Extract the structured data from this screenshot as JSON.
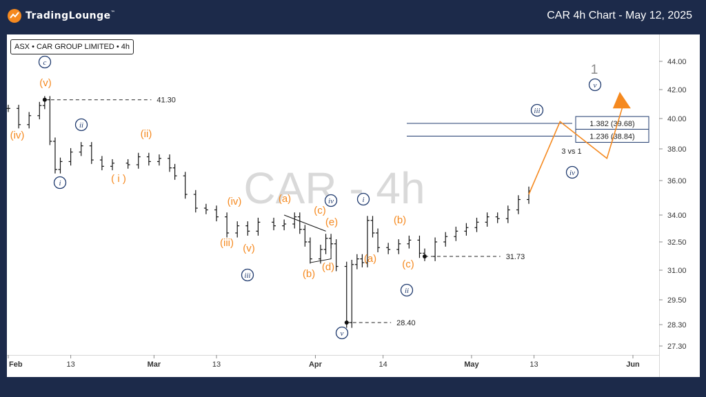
{
  "header": {
    "logo_text": "TradingLounge",
    "chart_title": "CAR 4h Chart - May 12, 2025"
  },
  "symbol_label": "ASX • CAR GROUP LIMITED • 4h",
  "watermark": "CAR - 4h",
  "colors": {
    "background": "#1c2a4a",
    "panel": "#ffffff",
    "wave_orange": "#f5891f",
    "wave_navy": "#1f3a6e",
    "price": "#111111"
  },
  "chart_data": {
    "type": "line",
    "subtype": "ohlc-bars-with-elliott-wave-annotations",
    "y_axis_side": "right",
    "ylim": [
      26.5,
      45.6
    ],
    "y_ticks": [
      "44.00",
      "42.00",
      "40.00",
      "38.00",
      "36.00",
      "34.00",
      "32.50",
      "31.00",
      "29.50",
      "28.30",
      "27.30"
    ],
    "x_ticks": [
      "Feb",
      "13",
      "Mar",
      "13",
      "Apr",
      "14",
      "May",
      "13",
      "Jun"
    ],
    "x_tick_values": [
      "2025-02-01",
      "2025-02-13",
      "2025-03-01",
      "2025-03-13",
      "2025-04-01",
      "2025-04-14",
      "2025-05-01",
      "2025-05-13",
      "2025-06-01"
    ],
    "series": [
      {
        "type": "price",
        "values": [
          [
            "2025-02-01",
            40.7
          ],
          [
            "2025-02-03",
            39.6
          ],
          [
            "2025-02-05",
            40.2
          ],
          [
            "2025-02-07",
            40.9
          ],
          [
            "2025-02-08",
            41.3
          ],
          [
            "2025-02-09",
            38.5
          ],
          [
            "2025-02-10",
            36.7
          ],
          [
            "2025-02-11",
            37.2
          ],
          [
            "2025-02-13",
            37.8
          ],
          [
            "2025-02-15",
            38.2
          ],
          [
            "2025-02-17",
            37.3
          ],
          [
            "2025-02-19",
            36.9
          ],
          [
            "2025-02-21",
            37.1
          ],
          [
            "2025-02-24",
            37.0
          ],
          [
            "2025-02-26",
            37.5
          ],
          [
            "2025-02-28",
            37.2
          ],
          [
            "2025-03-02",
            37.4
          ],
          [
            "2025-03-04",
            36.8
          ],
          [
            "2025-03-05",
            36.3
          ],
          [
            "2025-03-07",
            35.2
          ],
          [
            "2025-03-09",
            34.4
          ],
          [
            "2025-03-11",
            34.3
          ],
          [
            "2025-03-13",
            33.9
          ],
          [
            "2025-03-15",
            33.0
          ],
          [
            "2025-03-17",
            33.4
          ],
          [
            "2025-03-19",
            33.1
          ],
          [
            "2025-03-21",
            33.6
          ],
          [
            "2025-03-24",
            33.4
          ],
          [
            "2025-03-26",
            33.5
          ],
          [
            "2025-03-28",
            33.9
          ],
          [
            "2025-03-29",
            33.2
          ],
          [
            "2025-03-30",
            32.5
          ],
          [
            "2025-03-31",
            31.6
          ],
          [
            "2025-04-02",
            32.1
          ],
          [
            "2025-04-03",
            32.7
          ],
          [
            "2025-04-04",
            32.4
          ],
          [
            "2025-04-05",
            31.2
          ],
          [
            "2025-04-07",
            28.4
          ],
          [
            "2025-04-08",
            31.3
          ],
          [
            "2025-04-09",
            31.6
          ],
          [
            "2025-04-10",
            31.4
          ],
          [
            "2025-04-11",
            33.7
          ],
          [
            "2025-04-12",
            33.0
          ],
          [
            "2025-04-13",
            32.2
          ],
          [
            "2025-04-15",
            32.1
          ],
          [
            "2025-04-17",
            32.4
          ],
          [
            "2025-04-19",
            32.6
          ],
          [
            "2025-04-21",
            31.9
          ],
          [
            "2025-04-22",
            31.73
          ],
          [
            "2025-04-24",
            32.5
          ],
          [
            "2025-04-26",
            32.8
          ],
          [
            "2025-04-28",
            33.1
          ],
          [
            "2025-04-30",
            33.3
          ],
          [
            "2025-05-02",
            33.6
          ],
          [
            "2025-05-04",
            33.9
          ],
          [
            "2025-05-06",
            33.8
          ],
          [
            "2025-05-08",
            34.3
          ],
          [
            "2025-05-10",
            34.9
          ],
          [
            "2025-05-12",
            35.4
          ]
        ]
      },
      {
        "type": "projection",
        "values": [
          [
            "2025-05-12",
            35.2
          ],
          [
            "2025-05-18",
            39.8
          ],
          [
            "2025-05-27",
            37.4
          ],
          [
            "2025-05-30",
            40.8
          ]
        ]
      }
    ],
    "levels": [
      {
        "value": 41.3,
        "label": "41.30"
      },
      {
        "value": 31.73,
        "label": "31.73"
      },
      {
        "value": 28.4,
        "label": "28.40"
      }
    ],
    "fib_levels": [
      {
        "value": 39.68,
        "label": "1.382 (39.68)"
      },
      {
        "value": 38.84,
        "label": "1.236 (38.84)"
      }
    ],
    "annotations": [
      {
        "text": "3 vs 1"
      },
      {
        "text": "1"
      }
    ],
    "wave_labels_orange": [
      "(v)",
      "(iv)",
      "(ii)",
      "( i )",
      "(iv)",
      "(iii)",
      "(v)",
      "(a)",
      "(b)",
      "(c)",
      "(e)",
      "(d)",
      "(a)",
      "(b)",
      "(c)"
    ],
    "wave_labels_navy": [
      "c",
      "ii",
      "i",
      "iii",
      "iv",
      "v",
      "i",
      "ii",
      "iii",
      "iv",
      "v"
    ]
  }
}
